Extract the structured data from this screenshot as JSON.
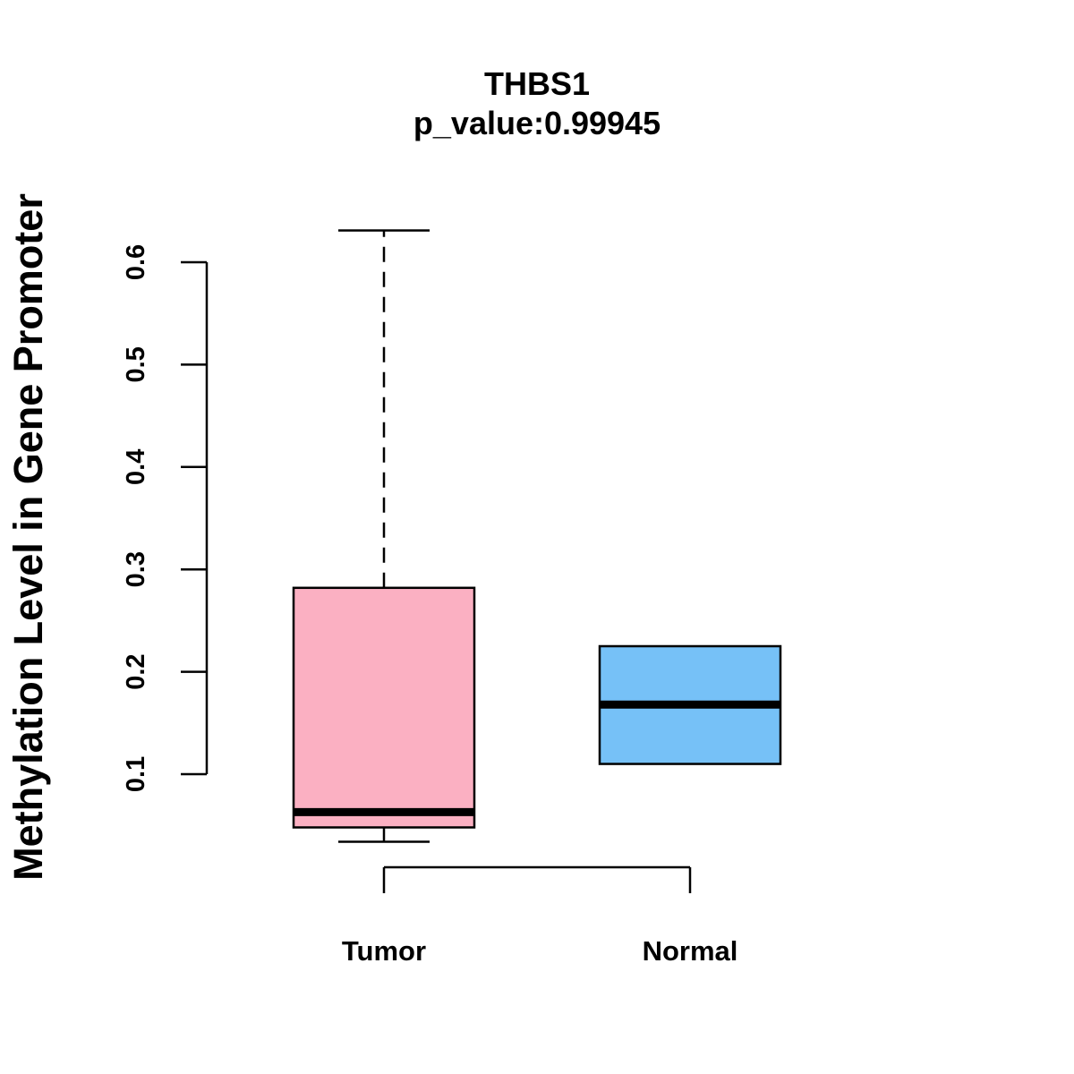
{
  "chart_data": {
    "type": "boxplot",
    "title": "THBS1",
    "subtitle": "p_value:0.99945",
    "xlabel": "",
    "ylabel": "Methylation Level in Gene Promoter",
    "ylim": [
      0.1,
      0.6
    ],
    "yticks": [
      0.1,
      0.2,
      0.3,
      0.4,
      0.5,
      0.6
    ],
    "ytick_labels": [
      "0.1",
      "0.2",
      "0.3",
      "0.4",
      "0.5",
      "0.6"
    ],
    "categories": [
      "Tumor",
      "Normal"
    ],
    "series": [
      {
        "name": "Tumor",
        "color": "#fbb0c2",
        "whisker_low": 0.034,
        "q1": 0.048,
        "median": 0.063,
        "q3": 0.282,
        "whisker_high": 0.631
      },
      {
        "name": "Normal",
        "color": "#76c1f7",
        "whisker_low": 0.11,
        "q1": 0.11,
        "median": 0.168,
        "q3": 0.225,
        "whisker_high": 0.225
      }
    ]
  }
}
